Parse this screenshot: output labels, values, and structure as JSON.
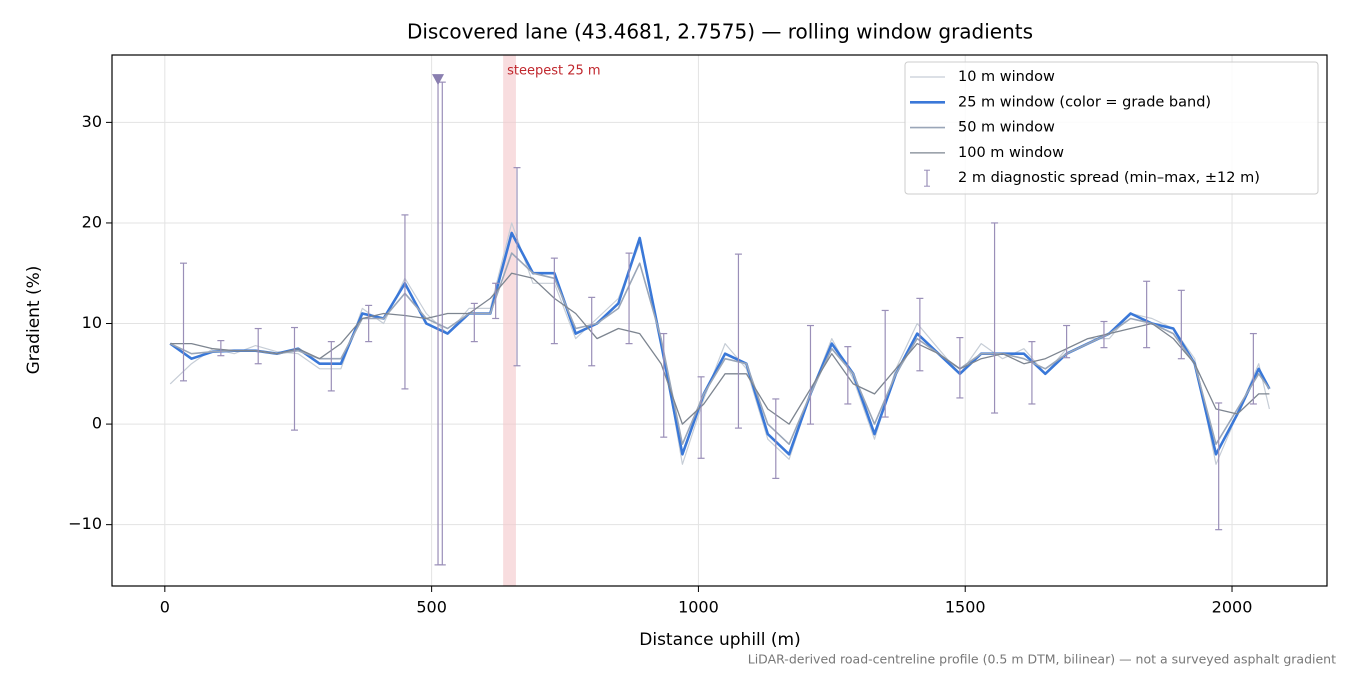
{
  "chart_data": {
    "type": "line",
    "title": "Discovered lane (43.4681, 2.7575) — rolling window gradients",
    "x_label": "Distance uphill (m)",
    "y_label": "Gradient (%)",
    "footer": "LiDAR-derived road-centreline profile (0.5 m DTM, bilinear) — not a surveyed asphalt gradient",
    "xlim": [
      -99,
      2178
    ],
    "ylim": [
      -16.1,
      36.7
    ],
    "xticks": [
      0,
      500,
      1000,
      1500,
      2000
    ],
    "yticks": [
      {
        "value": -10,
        "label": "−10"
      },
      0,
      10,
      20,
      30
    ],
    "grid": true,
    "legend": "upper right",
    "x": [
      10,
      50,
      90,
      130,
      170,
      210,
      250,
      290,
      330,
      370,
      410,
      450,
      490,
      530,
      570,
      610,
      650,
      690,
      730,
      770,
      810,
      850,
      890,
      930,
      970,
      1010,
      1050,
      1090,
      1130,
      1170,
      1210,
      1250,
      1290,
      1330,
      1370,
      1410,
      1450,
      1490,
      1530,
      1570,
      1610,
      1650,
      1690,
      1730,
      1770,
      1810,
      1850,
      1890,
      1930,
      1970,
      2010,
      2050,
      2070
    ],
    "series": [
      {
        "name": "10 m window",
        "color": "#c6cdd6",
        "width": 1.2,
        "values": [
          4,
          6,
          7.5,
          7,
          7.8,
          7.2,
          7,
          5.5,
          5.5,
          11.5,
          10,
          14.5,
          11,
          9,
          11.5,
          11.5,
          20,
          14,
          14,
          8.5,
          10.5,
          12.5,
          18,
          8.5,
          -4,
          2.5,
          8,
          5.5,
          -1.5,
          -3.5,
          3,
          8.5,
          4.5,
          -1.5,
          5.5,
          10,
          7.5,
          5,
          8,
          6.5,
          7.5,
          5,
          7.5,
          8.5,
          8.5,
          11,
          10.5,
          9.5,
          6.5,
          -4,
          1,
          6,
          1.5
        ]
      },
      {
        "name": "25 m window (color = grade band)",
        "color": "#3a78d8",
        "width": 2.6,
        "values": [
          8,
          6.5,
          7.2,
          7.3,
          7.3,
          7,
          7.5,
          6,
          6,
          11,
          10.5,
          14,
          10,
          9,
          11,
          11,
          19,
          15,
          15,
          9,
          10,
          12,
          18.5,
          8,
          -3,
          3,
          7,
          6,
          -1,
          -3,
          3,
          8,
          5,
          -1,
          5,
          9,
          7,
          5,
          7,
          7,
          7,
          5,
          7,
          8,
          9,
          11,
          10,
          9.5,
          6,
          -3,
          1,
          5.5,
          3.5
        ]
      },
      {
        "name": "50 m window",
        "color": "#9aa6b8",
        "width": 1.6,
        "values": [
          8,
          7,
          7.2,
          7.3,
          7.3,
          7,
          7.3,
          6.5,
          6.5,
          10.5,
          10.5,
          13,
          10.5,
          9.5,
          11,
          11,
          17,
          15,
          14.5,
          9.5,
          10,
          11.5,
          16,
          8.5,
          -2,
          3,
          6.5,
          6,
          0,
          -2,
          3,
          7.5,
          5,
          0,
          5,
          8.5,
          7,
          5.5,
          7,
          7,
          6.5,
          5.5,
          7,
          8,
          9,
          10.5,
          10,
          9,
          6,
          -2,
          1.5,
          5,
          3.5
        ]
      },
      {
        "name": "100 m window",
        "color": "#7d8590",
        "width": 1.3,
        "values": [
          8,
          8,
          7.5,
          7.3,
          7.3,
          7,
          7.5,
          6.5,
          8,
          10.5,
          11,
          10.8,
          10.5,
          11,
          11,
          12.5,
          15,
          14.5,
          12.5,
          11,
          8.5,
          9.5,
          9,
          6,
          0,
          2,
          5,
          5,
          1.5,
          0,
          3.5,
          7,
          4,
          3,
          5.5,
          8,
          7,
          5.5,
          6.5,
          7,
          6,
          6.5,
          7.5,
          8.5,
          9,
          9.5,
          10,
          8.5,
          6,
          1.5,
          1,
          3,
          3
        ]
      }
    ],
    "errorbars": {
      "name": "2 m diagnostic spread (min–max, ±12 m)",
      "color": "#9a8fb8",
      "x": [
        35,
        105,
        175,
        243,
        312,
        382,
        450,
        512,
        520,
        580,
        620,
        660,
        730,
        800,
        870,
        935,
        1005,
        1075,
        1145,
        1210,
        1280,
        1350,
        1415,
        1490,
        1555,
        1625,
        1690,
        1760,
        1840,
        1905,
        1975,
        2040
      ],
      "low": [
        4.3,
        6.8,
        6,
        -0.6,
        3.3,
        8.2,
        3.5,
        -14,
        -14,
        8.2,
        10.5,
        5.8,
        8,
        5.8,
        8,
        -1.3,
        -3.4,
        -0.4,
        -5.4,
        0,
        2,
        0.7,
        5.3,
        2.6,
        1.1,
        2,
        6.6,
        7.6,
        7.6,
        6.5,
        -10.5,
        2
      ],
      "high": [
        16,
        8.3,
        9.5,
        9.6,
        8.2,
        11.8,
        20.8,
        34.5,
        34,
        12,
        14,
        25.5,
        16.5,
        12.6,
        17,
        9,
        4.7,
        16.9,
        2.5,
        9.8,
        7.7,
        11.3,
        12.5,
        8.6,
        20,
        8.2,
        9.8,
        10.2,
        14.2,
        13.3,
        2.1,
        9
      ]
    },
    "clip_marker": {
      "x": 512,
      "y": 34.3,
      "color": "#8a7fb0"
    },
    "highlight": {
      "label": "steepest 25 m",
      "xspan": [
        634,
        658
      ],
      "color": "#f4c7c9",
      "label_color": "#c0272d"
    }
  }
}
